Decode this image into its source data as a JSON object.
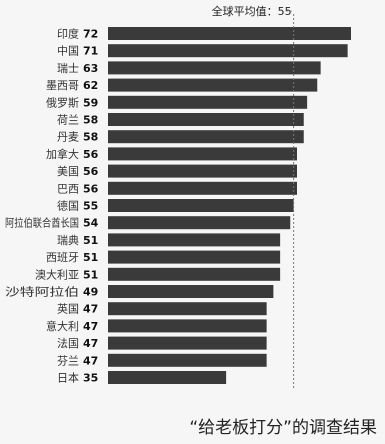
{
  "chart_data": {
    "type": "bar",
    "orientation": "horizontal",
    "categories": [
      "印度",
      "中国",
      "瑞士",
      "墨西哥",
      "俄罗斯",
      "荷兰",
      "丹麦",
      "加拿大",
      "美国",
      "巴西",
      "德国",
      "阿拉伯联合酋长国",
      "瑞典",
      "西班牙",
      "澳大利亚",
      "沙特阿拉伯",
      "英国",
      "意大利",
      "法国",
      "芬兰",
      "日本"
    ],
    "values": [
      72,
      71,
      63,
      62,
      59,
      58,
      58,
      56,
      56,
      56,
      55,
      54,
      51,
      51,
      51,
      49,
      47,
      47,
      47,
      47,
      35
    ],
    "value_labels": [
      "72",
      "71",
      "63",
      "62",
      "59",
      "58",
      "58",
      "56",
      "56",
      "56",
      "55",
      "54",
      "51",
      "51",
      "51",
      "49",
      "47",
      "47",
      "47",
      "47",
      "35"
    ],
    "reference_line": {
      "value": 55,
      "label": "全球平均值：55"
    },
    "bar_color": "#3a3a3a",
    "reference_color": "#777777"
  },
  "caption": "“给老板打分”的调查结果"
}
